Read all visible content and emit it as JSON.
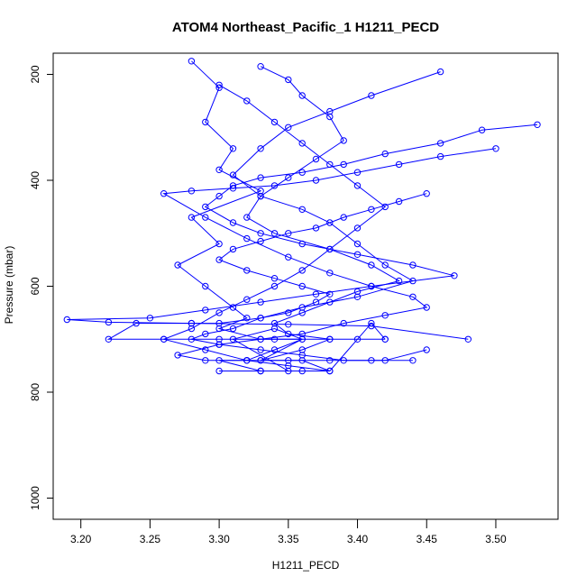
{
  "chart_data": {
    "type": "line",
    "title": "ATOM4 Northeast_Pacific_1 H1211_PECD",
    "xlabel": "H1211_PECD",
    "ylabel": "Pressure (mbar)",
    "xlim": [
      3.18,
      3.545
    ],
    "ylim": [
      1040,
      160
    ],
    "y_reversed": true,
    "x_ticks": [
      "3.20",
      "3.25",
      "3.30",
      "3.35",
      "3.40",
      "3.45",
      "3.50"
    ],
    "y_ticks": [
      "200",
      "400",
      "600",
      "800",
      "1000"
    ],
    "grid": false,
    "colors": {
      "series": "#0000ff",
      "axis": "#000000"
    },
    "marker": "open-circle",
    "series": [
      {
        "x": [
          3.28,
          3.3,
          3.29,
          3.31,
          3.3,
          3.33,
          3.28,
          3.3,
          3.27,
          3.29,
          3.31,
          3.32,
          3.3,
          3.33,
          3.36,
          3.34,
          3.32,
          3.3,
          3.33,
          3.35,
          3.31,
          3.34,
          3.36,
          3.33
        ],
        "y": [
          175,
          225,
          290,
          340,
          380,
          420,
          470,
          520,
          560,
          600,
          640,
          660,
          680,
          700,
          700,
          720,
          740,
          740,
          760,
          760,
          700,
          680,
          700,
          740
        ]
      },
      {
        "x": [
          3.33,
          3.35,
          3.36,
          3.38,
          3.39,
          3.37,
          3.35,
          3.33,
          3.32,
          3.34,
          3.38,
          3.41,
          3.43,
          3.4,
          3.38,
          3.36,
          3.34,
          3.35,
          3.38,
          3.36,
          3.33,
          3.36,
          3.38,
          3.4,
          3.41,
          3.42
        ],
        "y": [
          185,
          210,
          240,
          280,
          325,
          360,
          395,
          430,
          470,
          500,
          530,
          560,
          590,
          610,
          630,
          650,
          670,
          690,
          700,
          720,
          740,
          740,
          760,
          700,
          670,
          700
        ]
      },
      {
        "x": [
          3.46,
          3.41,
          3.38,
          3.35,
          3.33,
          3.31,
          3.33,
          3.36,
          3.38,
          3.4,
          3.42,
          3.44,
          3.4,
          3.36,
          3.33,
          3.3,
          3.28,
          3.24,
          3.22,
          3.26,
          3.3,
          3.34,
          3.38,
          3.42
        ],
        "y": [
          195,
          240,
          270,
          300,
          340,
          390,
          430,
          455,
          480,
          520,
          560,
          590,
          620,
          640,
          660,
          670,
          670,
          670,
          700,
          700,
          700,
          700,
          700,
          700
        ]
      },
      {
        "x": [
          3.53,
          3.49,
          3.46,
          3.42,
          3.39,
          3.36,
          3.33,
          3.31,
          3.3,
          3.29,
          3.31,
          3.33,
          3.36,
          3.4,
          3.44,
          3.47,
          3.41,
          3.37,
          3.33,
          3.29,
          3.25,
          3.19,
          3.22,
          3.28,
          3.35,
          3.41,
          3.48
        ],
        "y": [
          295,
          305,
          330,
          350,
          370,
          385,
          395,
          410,
          430,
          450,
          480,
          500,
          520,
          540,
          560,
          580,
          600,
          615,
          630,
          645,
          660,
          663,
          668,
          670,
          672,
          675,
          700
        ]
      },
      {
        "x": [
          3.5,
          3.46,
          3.43,
          3.4,
          3.37,
          3.34,
          3.31,
          3.28,
          3.26,
          3.29,
          3.32,
          3.35,
          3.38,
          3.41,
          3.44,
          3.45,
          3.42,
          3.39,
          3.36,
          3.33,
          3.3,
          3.27,
          3.29,
          3.32,
          3.35,
          3.38,
          3.41,
          3.44
        ],
        "y": [
          340,
          355,
          370,
          385,
          400,
          410,
          415,
          420,
          425,
          470,
          510,
          545,
          575,
          600,
          620,
          640,
          655,
          670,
          690,
          700,
          710,
          730,
          740,
          740,
          740,
          740,
          740,
          740
        ]
      },
      {
        "x": [
          3.45,
          3.43,
          3.41,
          3.39,
          3.37,
          3.35,
          3.33,
          3.31,
          3.3,
          3.32,
          3.34,
          3.36,
          3.38,
          3.37,
          3.35,
          3.33,
          3.31,
          3.29,
          3.28,
          3.3,
          3.33,
          3.36,
          3.39,
          3.42,
          3.45
        ],
        "y": [
          425,
          440,
          455,
          470,
          490,
          500,
          515,
          530,
          550,
          570,
          585,
          600,
          615,
          630,
          650,
          660,
          680,
          690,
          700,
          710,
          720,
          730,
          740,
          740,
          720
        ]
      },
      {
        "x": [
          3.3,
          3.32,
          3.34,
          3.36,
          3.38,
          3.4,
          3.42,
          3.4,
          3.38,
          3.36,
          3.34,
          3.32,
          3.3,
          3.28,
          3.26,
          3.29,
          3.32,
          3.35,
          3.38,
          3.36,
          3.33,
          3.3
        ],
        "y": [
          220,
          250,
          290,
          330,
          370,
          410,
          450,
          490,
          530,
          570,
          600,
          625,
          650,
          680,
          700,
          720,
          740,
          750,
          760,
          760,
          760,
          760
        ]
      }
    ]
  }
}
